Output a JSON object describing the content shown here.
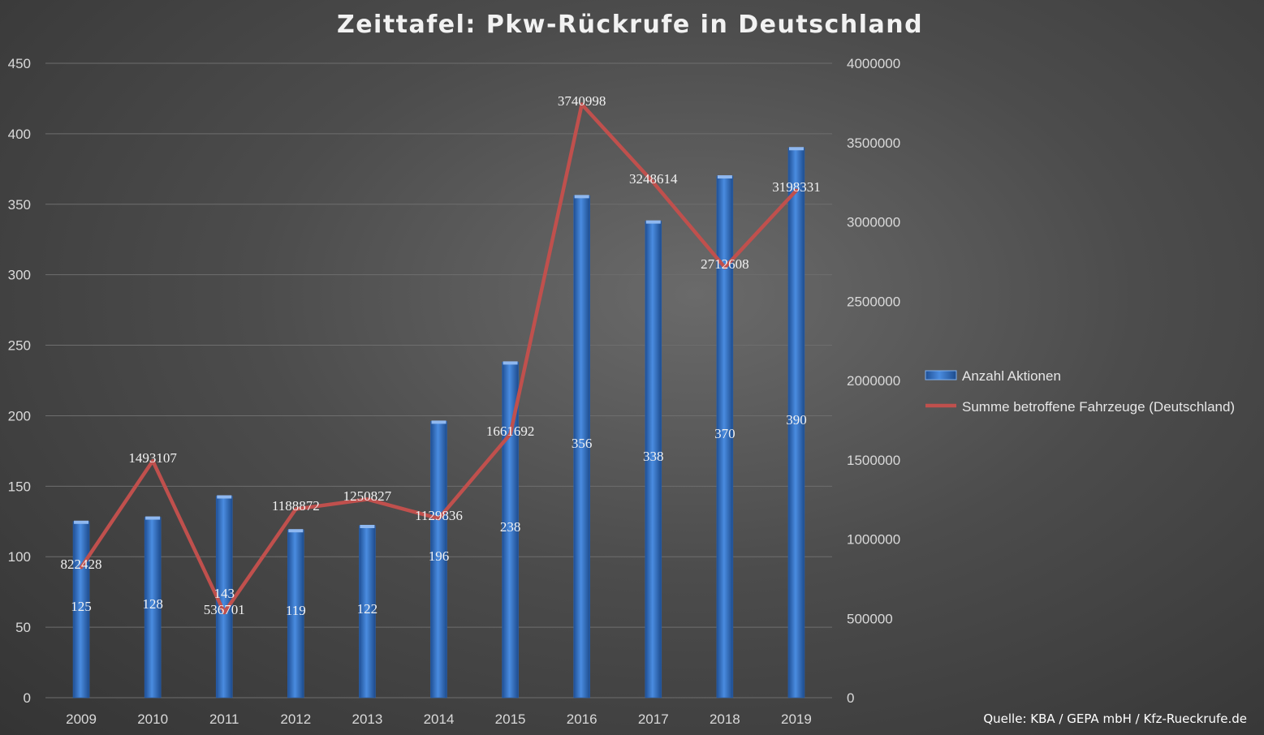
{
  "chart_data": {
    "type": "bar",
    "title": "Zeittafel: Pkw-Rückrufe in Deutschland",
    "categories": [
      "2009",
      "2010",
      "2011",
      "2012",
      "2013",
      "2014",
      "2015",
      "2016",
      "2017",
      "2018",
      "2019"
    ],
    "series": [
      {
        "name": "Anzahl Aktionen",
        "type": "bar",
        "axis": "left",
        "color": "#3a7bd5",
        "values": [
          125,
          128,
          143,
          119,
          122,
          196,
          238,
          356,
          338,
          370,
          390
        ]
      },
      {
        "name": "Summe betroffene Fahrzeuge (Deutschland)",
        "type": "line",
        "axis": "right",
        "color": "#c0504d",
        "values": [
          822428,
          1493107,
          536701,
          1188872,
          1250827,
          1129836,
          1661692,
          3740998,
          3248614,
          2712608,
          3198331
        ]
      }
    ],
    "y_left": {
      "ylim": [
        0,
        450
      ],
      "ticks": [
        "0",
        "50",
        "100",
        "150",
        "200",
        "250",
        "300",
        "350",
        "400",
        "450"
      ]
    },
    "y_right": {
      "ylim": [
        0,
        4000000
      ],
      "ticks": [
        "0",
        "500000",
        "1000000",
        "1500000",
        "2000000",
        "2500000",
        "3000000",
        "3500000",
        "4000000"
      ]
    },
    "grid": true,
    "legend_position": "right",
    "source": "Quelle: KBA / GEPA mbH / Kfz-Rueckrufe.de"
  }
}
